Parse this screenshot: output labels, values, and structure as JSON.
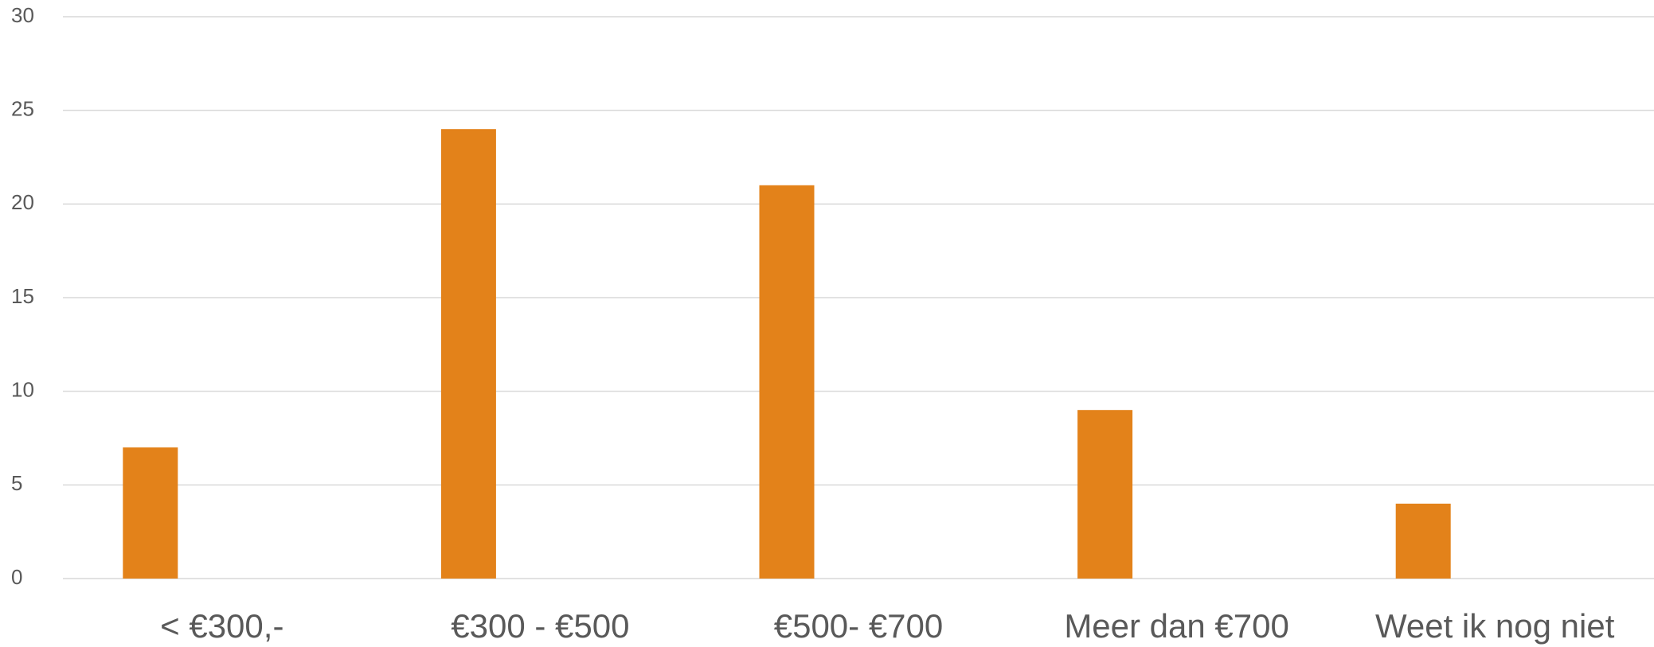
{
  "chart_data": {
    "type": "bar",
    "categories": [
      "< €300,-",
      "€300 - €500",
      "€500- €700",
      "Meer dan €700",
      "Weet ik nog niet"
    ],
    "values": [
      7,
      24,
      21,
      9,
      4
    ],
    "color": "#e3821a",
    "ylim": [
      0,
      30
    ],
    "yticks": [
      0,
      5,
      10,
      15,
      20,
      25,
      30
    ],
    "grid": true
  }
}
